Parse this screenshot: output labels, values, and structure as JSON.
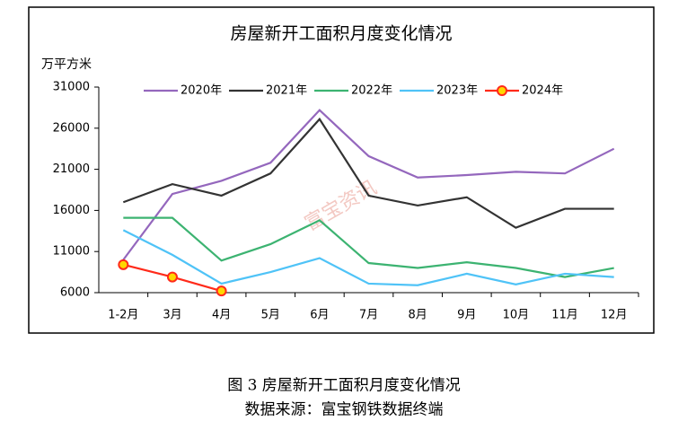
{
  "chart_data": {
    "type": "line",
    "title": "房屋新开工面积月度变化情况",
    "y_label": "万平方米",
    "watermark": "富宝资讯",
    "caption": "图 3 房屋新开工面积月度变化情况",
    "source": "数据来源：富宝钢铁数据终端",
    "categories": [
      "1-2月",
      "3月",
      "4月",
      "5月",
      "6月",
      "7月",
      "8月",
      "9月",
      "10月",
      "11月",
      "12月"
    ],
    "series": [
      {
        "name": "2020年",
        "color": "#9467bd",
        "values": [
          10000,
          18000,
          19600,
          21800,
          28200,
          22600,
          20000,
          20300,
          20700,
          20500,
          23500
        ]
      },
      {
        "name": "2021年",
        "color": "#333333",
        "values": [
          17000,
          19200,
          17800,
          20500,
          27100,
          17800,
          16600,
          17600,
          13900,
          16200,
          16200
        ]
      },
      {
        "name": "2022年",
        "color": "#3cb371",
        "values": [
          15100,
          15100,
          9900,
          11900,
          14800,
          9600,
          9000,
          9700,
          9000,
          7900,
          9000
        ]
      },
      {
        "name": "2023年",
        "color": "#4fc3f7",
        "values": [
          13600,
          10600,
          7100,
          8500,
          10200,
          7100,
          6900,
          8300,
          7000,
          8300,
          7900
        ]
      },
      {
        "name": "2024年",
        "color": "#ff2a1a",
        "marker_color": "#ffd700",
        "values": [
          9400,
          7900,
          6200,
          null,
          null,
          null,
          null,
          null,
          null,
          null,
          null
        ]
      }
    ],
    "ylim": [
      6000,
      31000
    ],
    "yticks": [
      6000,
      11000,
      16000,
      21000,
      26000,
      31000
    ],
    "grid": false
  }
}
